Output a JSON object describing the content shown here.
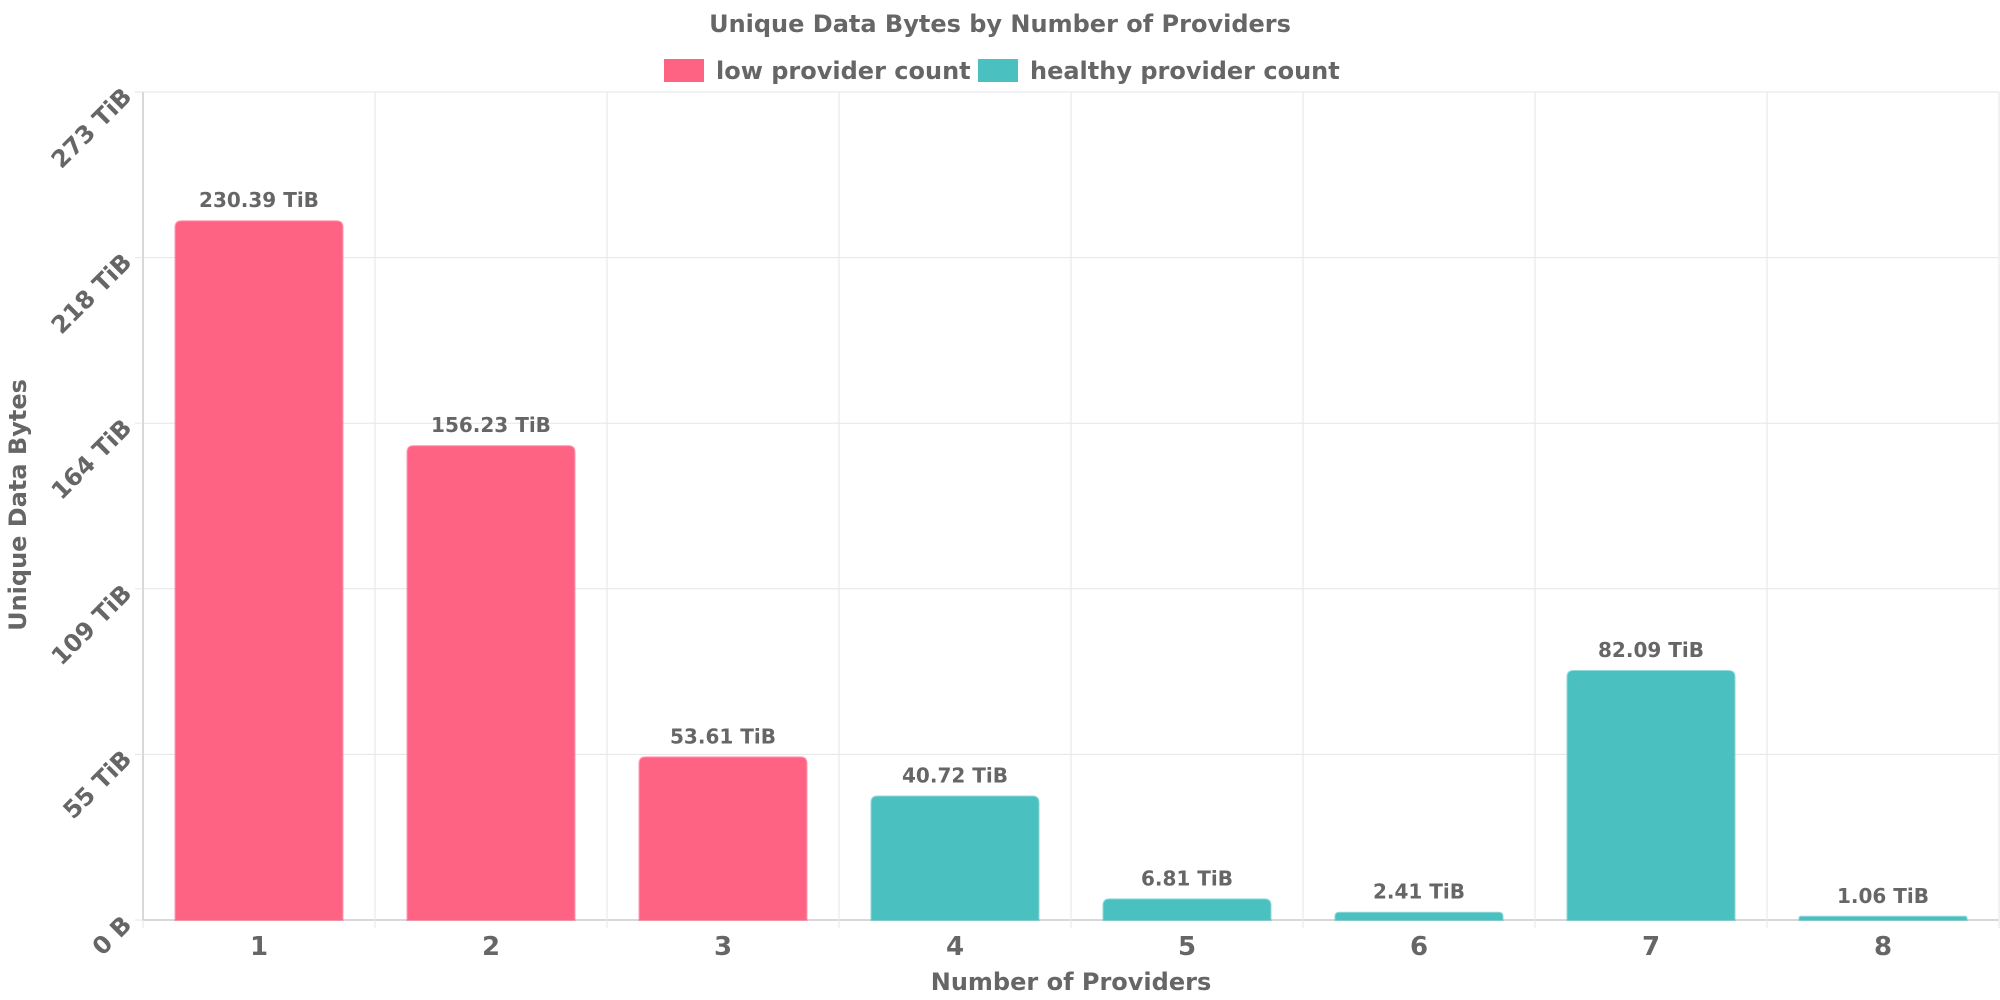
{
  "chart_data": {
    "type": "bar",
    "title": "Unique Data Bytes by Number of Providers",
    "xlabel": "Number of Providers",
    "ylabel": "Unique Data Bytes",
    "categories": [
      "1",
      "2",
      "3",
      "4",
      "5",
      "6",
      "7",
      "8"
    ],
    "values": [
      230.39,
      156.23,
      53.61,
      40.72,
      6.81,
      2.41,
      82.09,
      1.06
    ],
    "value_labels": [
      "230.39 TiB",
      "156.23 TiB",
      "53.61 TiB",
      "40.72 TiB",
      "6.81 TiB",
      "2.41 TiB",
      "82.09 TiB",
      "1.06 TiB"
    ],
    "bar_series": [
      "low provider count",
      "low provider count",
      "low provider count",
      "healthy provider count",
      "healthy provider count",
      "healthy provider count",
      "healthy provider count",
      "healthy provider count"
    ],
    "unit": "TiB",
    "ylim": [
      0,
      273
    ],
    "y_ticks": [
      0,
      54.6,
      109.2,
      163.8,
      218.4,
      273
    ],
    "y_tick_labels": [
      "0 B",
      "55 TiB",
      "109 TiB",
      "164 TiB",
      "218 TiB",
      "273 TiB"
    ],
    "legend": [
      {
        "name": "low provider count",
        "color": "#ff6384"
      },
      {
        "name": "healthy provider count",
        "color": "#4bc0c0"
      }
    ],
    "legend_position": "top-center",
    "grid": true
  }
}
